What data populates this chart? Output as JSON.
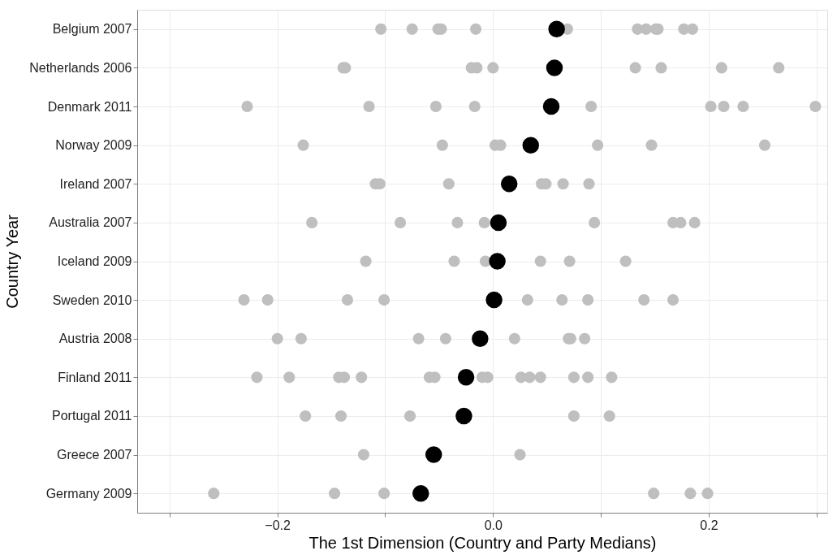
{
  "chart_data": {
    "type": "scatter",
    "orientation": "horizontal",
    "xlabel": "The 1st Dimension (Country and Party Medians)",
    "ylabel": "Country Year",
    "categories": [
      "Belgium 2007",
      "Netherlands 2006",
      "Denmark 2011",
      "Norway 2009",
      "Ireland 2007",
      "Australia 2007",
      "Iceland 2009",
      "Sweden 2010",
      "Austria 2008",
      "Finland 2011",
      "Portugal 2011",
      "Greece 2007",
      "Germany 2009"
    ],
    "xlim": [
      -0.33,
      0.31
    ],
    "xticks": [
      {
        "value": -0.3,
        "label": null
      },
      {
        "value": -0.2,
        "label": "−0.2"
      },
      {
        "value": -0.1,
        "label": null
      },
      {
        "value": 0,
        "label": "0.0"
      },
      {
        "value": 0.1,
        "label": null
      },
      0.2,
      {
        "value": 0.3,
        "label": null
      }
    ],
    "grid": true,
    "legend": false,
    "series": [
      {
        "color": "#bfbfbf",
        "x": [
          "Belgium 2007",
          "Belgium 2007",
          "Belgium 2007",
          "Belgium 2007",
          "Belgium 2007",
          "Belgium 2007",
          "Belgium 2007",
          "Belgium 2007",
          "Belgium 2007",
          "Belgium 2007",
          "Belgium 2007",
          "Belgium 2007",
          "Netherlands 2006",
          "Netherlands 2006",
          "Netherlands 2006",
          "Netherlands 2006",
          "Netherlands 2006",
          "Netherlands 2006",
          "Netherlands 2006",
          "Netherlands 2006",
          "Netherlands 2006",
          "Denmark 2011",
          "Denmark 2011",
          "Denmark 2011",
          "Denmark 2011",
          "Denmark 2011",
          "Denmark 2011",
          "Denmark 2011",
          "Denmark 2011",
          "Denmark 2011",
          "Norway 2009",
          "Norway 2009",
          "Norway 2009",
          "Norway 2009",
          "Norway 2009",
          "Norway 2009",
          "Norway 2009",
          "Ireland 2007",
          "Ireland 2007",
          "Ireland 2007",
          "Ireland 2007",
          "Ireland 2007",
          "Ireland 2007",
          "Ireland 2007",
          "Australia 2007",
          "Australia 2007",
          "Australia 2007",
          "Australia 2007",
          "Australia 2007",
          "Australia 2007",
          "Australia 2007",
          "Australia 2007",
          "Iceland 2009",
          "Iceland 2009",
          "Iceland 2009",
          "Iceland 2009",
          "Iceland 2009",
          "Iceland 2009",
          "Sweden 2010",
          "Sweden 2010",
          "Sweden 2010",
          "Sweden 2010",
          "Sweden 2010",
          "Sweden 2010",
          "Sweden 2010",
          "Sweden 2010",
          "Sweden 2010",
          "Austria 2008",
          "Austria 2008",
          "Austria 2008",
          "Austria 2008",
          "Austria 2008",
          "Austria 2008",
          "Austria 2008",
          "Austria 2008",
          "Finland 2011",
          "Finland 2011",
          "Finland 2011",
          "Finland 2011",
          "Finland 2011",
          "Finland 2011",
          "Finland 2011",
          "Finland 2011",
          "Finland 2011",
          "Finland 2011",
          "Finland 2011",
          "Finland 2011",
          "Finland 2011",
          "Finland 2011",
          "Finland 2011",
          "Portugal 2011",
          "Portugal 2011",
          "Portugal 2011",
          "Portugal 2011",
          "Portugal 2011",
          "Greece 2007",
          "Greece 2007",
          "Germany 2009",
          "Germany 2009",
          "Germany 2009",
          "Germany 2009",
          "Germany 2009",
          "Germany 2009"
        ],
        "values": [
          -0.104,
          -0.075,
          -0.051,
          -0.048,
          -0.016,
          0.069,
          0.134,
          0.142,
          0.151,
          0.153,
          0.177,
          0.185,
          -0.139,
          -0.137,
          -0.02,
          -0.015,
          0.0,
          0.132,
          0.156,
          0.212,
          0.265,
          -0.228,
          -0.115,
          -0.053,
          -0.017,
          0.091,
          0.202,
          0.214,
          0.232,
          0.299,
          -0.176,
          -0.047,
          0.002,
          0.007,
          0.097,
          0.147,
          0.252,
          -0.109,
          -0.105,
          -0.041,
          0.045,
          0.049,
          0.065,
          0.089,
          -0.168,
          -0.086,
          -0.033,
          -0.008,
          0.094,
          0.167,
          0.174,
          0.187,
          -0.118,
          -0.036,
          -0.007,
          0.044,
          0.071,
          0.123,
          -0.231,
          -0.209,
          -0.135,
          -0.101,
          0.032,
          0.064,
          0.088,
          0.14,
          0.167,
          -0.2,
          -0.178,
          -0.069,
          -0.044,
          0.02,
          0.07,
          0.072,
          0.085,
          -0.219,
          -0.189,
          -0.143,
          -0.138,
          -0.122,
          -0.059,
          -0.054,
          -0.01,
          -0.005,
          0.026,
          0.034,
          0.044,
          0.075,
          0.088,
          0.11,
          -0.174,
          -0.141,
          -0.077,
          0.075,
          0.108,
          -0.12,
          0.025,
          -0.259,
          -0.147,
          -0.101,
          0.149,
          0.183,
          0.199
        ]
      },
      {
        "color": "#000000",
        "x": [
          "Belgium 2007",
          "Netherlands 2006",
          "Denmark 2011",
          "Norway 2009",
          "Ireland 2007",
          "Australia 2007",
          "Iceland 2009",
          "Sweden 2010",
          "Austria 2008",
          "Finland 2011",
          "Portugal 2011",
          "Greece 2007",
          "Germany 2009"
        ],
        "values": [
          0.059,
          0.057,
          0.054,
          0.035,
          0.015,
          0.005,
          0.004,
          0.001,
          -0.012,
          -0.025,
          -0.027,
          -0.055,
          -0.067
        ]
      }
    ]
  }
}
